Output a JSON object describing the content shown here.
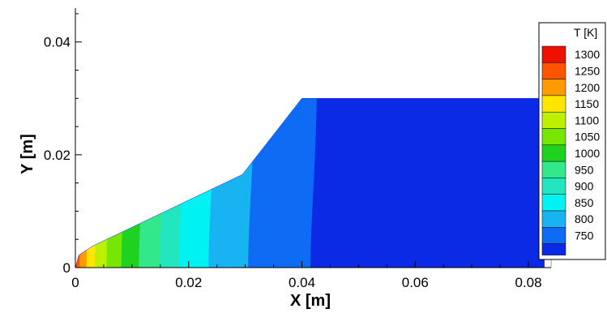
{
  "chart_data": {
    "type": "heatmap",
    "title": "",
    "xlabel": "X [m]",
    "ylabel": "Y [m]",
    "xlim": [
      0,
      0.084
    ],
    "ylim": [
      0,
      0.046
    ],
    "x_ticks": [
      {
        "value": 0,
        "label": "0"
      },
      {
        "value": 0.02,
        "label": "0.02"
      },
      {
        "value": 0.04,
        "label": "0.04"
      },
      {
        "value": 0.06,
        "label": "0.06"
      },
      {
        "value": 0.08,
        "label": "0.08"
      }
    ],
    "y_ticks": [
      {
        "value": 0,
        "label": "0"
      },
      {
        "value": 0.02,
        "label": "0.02"
      },
      {
        "value": 0.04,
        "label": "0.04"
      }
    ],
    "domain_outline": [
      [
        0,
        0
      ],
      [
        0.0006,
        0.0022
      ],
      [
        0.003,
        0.0038
      ],
      [
        0.0295,
        0.0165
      ],
      [
        0.04,
        0.03
      ],
      [
        0.084,
        0.03
      ],
      [
        0.084,
        0
      ]
    ],
    "contour_bands": [
      {
        "level": "1300",
        "x_from": 0.0,
        "x_to": 0.0006,
        "color": "#ee1100"
      },
      {
        "level": "1250",
        "x_from": 0.0006,
        "x_to": 0.0016,
        "color": "#ff5500"
      },
      {
        "level": "1200",
        "x_from": 0.0016,
        "x_to": 0.003,
        "color": "#ff9a00"
      },
      {
        "level": "1150",
        "x_from": 0.003,
        "x_to": 0.0047,
        "color": "#ffe600"
      },
      {
        "level": "1100",
        "x_from": 0.0047,
        "x_to": 0.0068,
        "color": "#bdf000"
      },
      {
        "level": "1050",
        "x_from": 0.0068,
        "x_to": 0.0094,
        "color": "#77e600"
      },
      {
        "level": "1000",
        "x_from": 0.0094,
        "x_to": 0.0125,
        "color": "#1fd21f"
      },
      {
        "level": "950",
        "x_from": 0.0125,
        "x_to": 0.0162,
        "color": "#33e88a"
      },
      {
        "level": "900",
        "x_from": 0.0162,
        "x_to": 0.0196,
        "color": "#22e6c0"
      },
      {
        "level": "850",
        "x_from": 0.0196,
        "x_to": 0.0248,
        "color": "#00f2f2"
      },
      {
        "level": "800",
        "x_from": 0.0248,
        "x_to": 0.0318,
        "color": "#18b4f2"
      },
      {
        "level": "750",
        "x_from": 0.0318,
        "x_to": 0.0428,
        "color": "#0d6cf3"
      },
      {
        "level": "below 750",
        "x_from": 0.0428,
        "x_to": 0.084,
        "color": "#0b2ae6"
      }
    ],
    "legend": {
      "title": "T [K]",
      "placement": "right",
      "entries": [
        {
          "label": "1300",
          "color": "#ee1100"
        },
        {
          "label": "1250",
          "color": "#ff5500"
        },
        {
          "label": "1200",
          "color": "#ff9a00"
        },
        {
          "label": "1150",
          "color": "#ffe600"
        },
        {
          "label": "1100",
          "color": "#bdf000"
        },
        {
          "label": "1050",
          "color": "#77e600"
        },
        {
          "label": "1000",
          "color": "#1fd21f"
        },
        {
          "label": "950",
          "color": "#33e88a"
        },
        {
          "label": "900",
          "color": "#22e6c0"
        },
        {
          "label": "850",
          "color": "#00f2f2"
        },
        {
          "label": "800",
          "color": "#18b4f2"
        },
        {
          "label": "750",
          "color": "#0d6cf3"
        }
      ],
      "bottom_color": "#0b2ae6"
    },
    "grid": false
  }
}
